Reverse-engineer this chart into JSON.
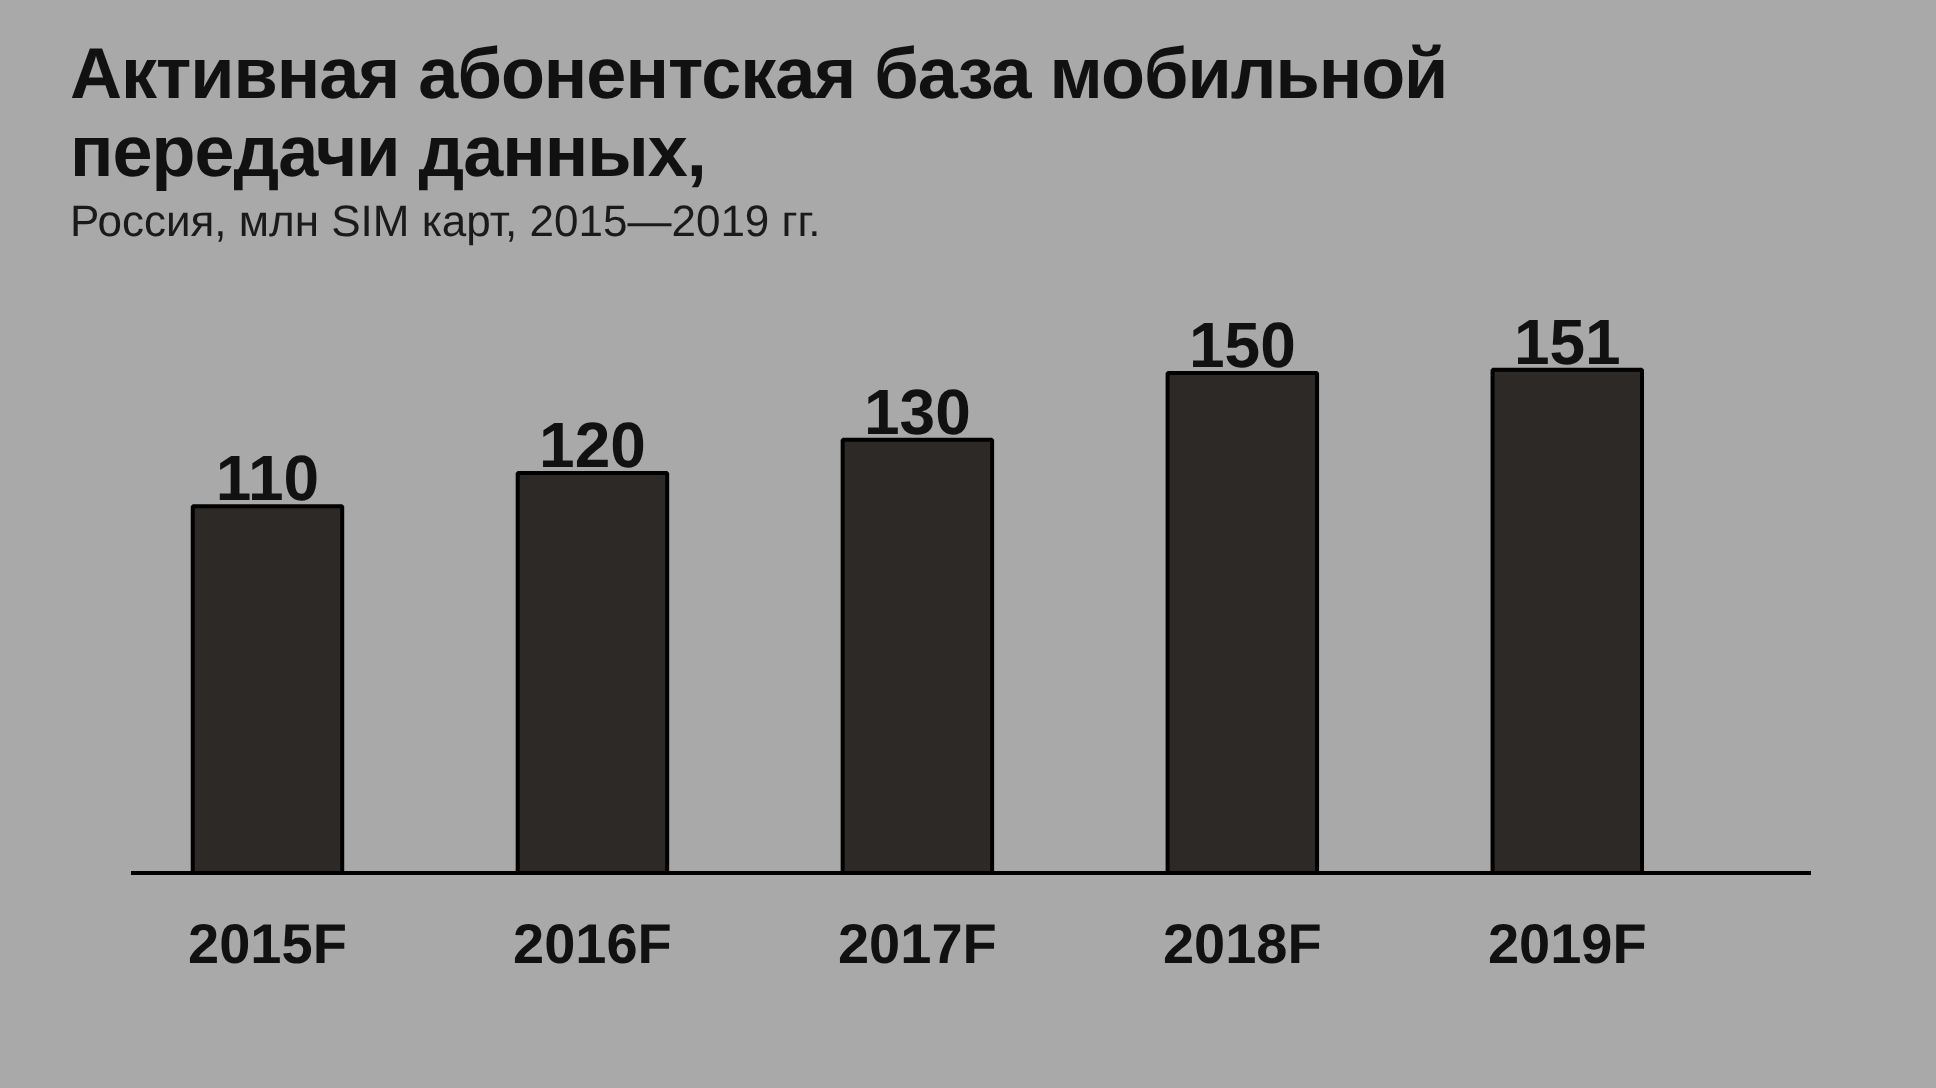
{
  "chart_data": {
    "type": "bar",
    "title": "Активная абонентская база мобильной передачи данных,",
    "subtitle": "Россия, млн SIM карт, 2015—2019 гг.",
    "categories": [
      "2015F",
      "2016F",
      "2017F",
      "2018F",
      "2019F"
    ],
    "values": [
      110,
      120,
      130,
      150,
      151
    ],
    "color": "#2d2926",
    "data_labels": true,
    "grid": false
  }
}
